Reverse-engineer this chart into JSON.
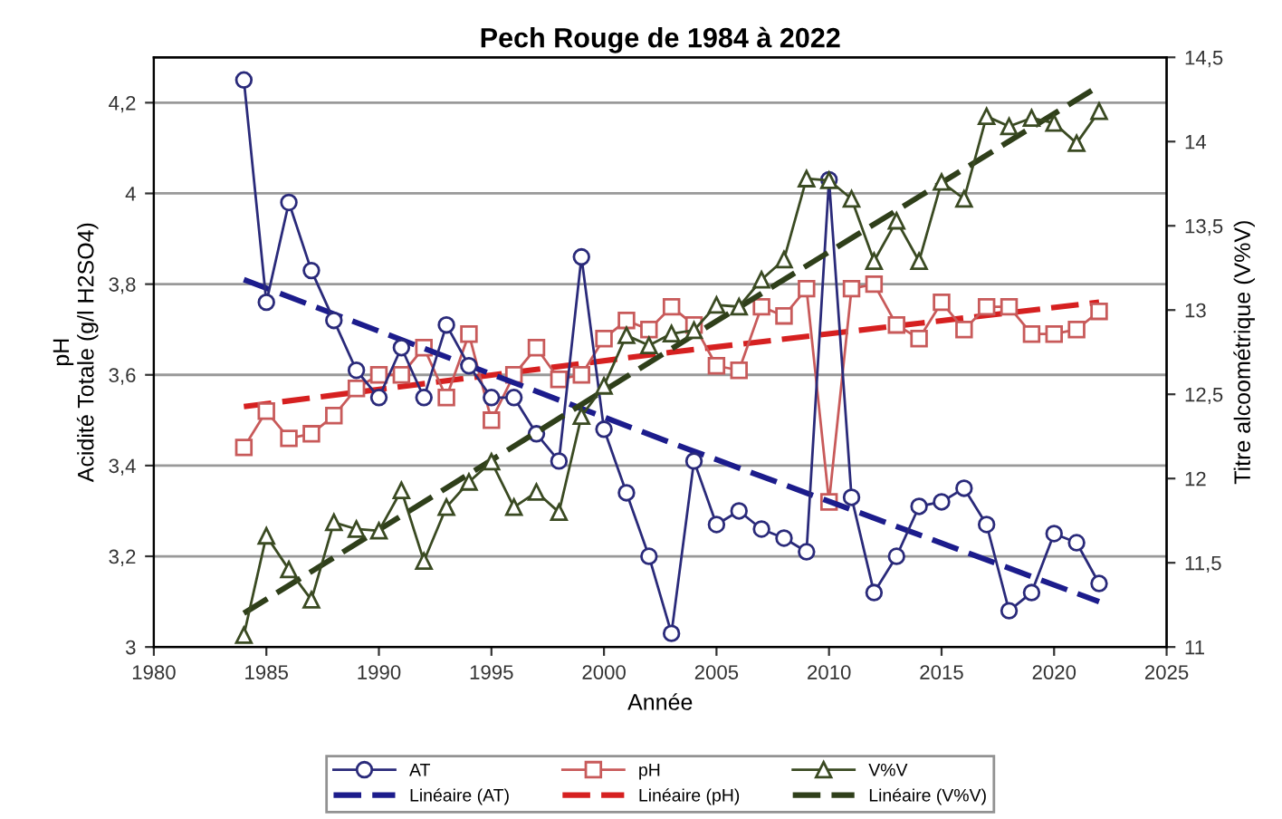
{
  "chart_data": {
    "type": "line",
    "title": "Pech Rouge de 1984 à 2022",
    "xlabel": "Année",
    "ylabel": "pH\nAcidité Totale (g/l H2SO4)",
    "y2label": "Titre alcoométrique (V%V)",
    "x": [
      1984,
      1985,
      1986,
      1987,
      1988,
      1989,
      1990,
      1991,
      1992,
      1993,
      1994,
      1995,
      1996,
      1997,
      1998,
      1999,
      2000,
      2001,
      2002,
      2003,
      2004,
      2005,
      2006,
      2007,
      2008,
      2009,
      2010,
      2011,
      2012,
      2013,
      2014,
      2015,
      2016,
      2017,
      2018,
      2019,
      2020,
      2021,
      2022
    ],
    "series": [
      {
        "name": "AT",
        "color": "#2a2a7a",
        "marker": "circle",
        "line_style": "solid",
        "values": [
          4.25,
          3.76,
          3.98,
          3.83,
          3.72,
          3.61,
          3.55,
          3.66,
          3.55,
          3.71,
          3.62,
          3.55,
          3.55,
          3.47,
          3.41,
          3.86,
          3.48,
          3.34,
          3.2,
          3.03,
          3.41,
          3.27,
          3.3,
          3.26,
          3.24,
          3.21,
          4.03,
          3.33,
          3.12,
          3.2,
          3.31,
          3.32,
          3.35,
          3.27,
          3.08,
          3.12,
          3.25,
          3.23,
          3.14
        ]
      },
      {
        "name": "Linéaire (AT)",
        "color": "#1c1c8c",
        "type": "line",
        "marker": "none",
        "line_style": "dashed",
        "x": [
          1984,
          2003,
          2022
        ],
        "values": [
          3.81,
          3.45,
          3.1
        ]
      },
      {
        "name": "pH",
        "color": "#c85a5a",
        "marker": "square",
        "line_style": "solid",
        "values": [
          3.44,
          3.52,
          3.46,
          3.47,
          3.51,
          3.57,
          3.6,
          3.6,
          3.66,
          3.55,
          3.69,
          3.5,
          3.6,
          3.66,
          3.59,
          3.6,
          3.68,
          3.72,
          3.7,
          3.75,
          3.71,
          3.62,
          3.61,
          3.75,
          3.73,
          3.79,
          3.32,
          3.79,
          3.8,
          3.71,
          3.68,
          3.76,
          3.7,
          3.75,
          3.75,
          3.69,
          3.69,
          3.7,
          3.74
        ]
      },
      {
        "name": "Linéaire (pH)",
        "color": "#d62020",
        "type": "line",
        "marker": "none",
        "line_style": "dashed",
        "x": [
          1984,
          2003,
          2022
        ],
        "values": [
          3.53,
          3.65,
          3.76
        ]
      },
      {
        "name": "V%V",
        "color": "#3a4a22",
        "marker": "triangle",
        "line_style": "solid",
        "axis": "y2",
        "values": [
          11.07,
          11.66,
          11.46,
          11.28,
          11.74,
          11.7,
          11.69,
          11.93,
          11.51,
          11.83,
          11.98,
          12.1,
          11.83,
          11.92,
          11.8,
          12.37,
          12.55,
          12.85,
          12.79,
          12.86,
          12.88,
          13.03,
          13.02,
          13.18,
          13.3,
          13.78,
          13.77,
          13.66,
          13.29,
          13.53,
          13.29,
          13.76,
          13.66,
          14.15,
          14.09,
          14.14,
          14.11,
          13.99,
          14.18
        ]
      },
      {
        "name": "Linéaire (V%V)",
        "color": "#2f3f1a",
        "type": "line",
        "marker": "none",
        "line_style": "dashed",
        "axis": "y2",
        "x": [
          1984,
          2003,
          2022
        ],
        "values": [
          11.2,
          12.77,
          14.33
        ]
      }
    ],
    "xlim": [
      1980,
      2025
    ],
    "xticks": [
      1980,
      1985,
      1990,
      1995,
      2000,
      2005,
      2010,
      2015,
      2020,
      2025
    ],
    "ylim": [
      3,
      4.3
    ],
    "yticks": [
      {
        "value": 3,
        "label": "3"
      },
      {
        "value": 3.2,
        "label": "3,2"
      },
      {
        "value": 3.4,
        "label": "3,4"
      },
      {
        "value": 3.6,
        "label": "3,6"
      },
      {
        "value": 3.8,
        "label": "3,8"
      },
      {
        "value": 4,
        "label": "4"
      },
      {
        "value": 4.2,
        "label": "4,2"
      }
    ],
    "y2lim": [
      11,
      14.5
    ],
    "y2ticks": [
      {
        "value": 11,
        "label": "11"
      },
      {
        "value": 11.5,
        "label": "11,5"
      },
      {
        "value": 12,
        "label": "12"
      },
      {
        "value": 12.5,
        "label": "12,5"
      },
      {
        "value": 13,
        "label": "13"
      },
      {
        "value": 13.5,
        "label": "13,5"
      },
      {
        "value": 14,
        "label": "14"
      },
      {
        "value": 14.5,
        "label": "14,5"
      }
    ],
    "grid": "y",
    "legend": "bottom"
  }
}
